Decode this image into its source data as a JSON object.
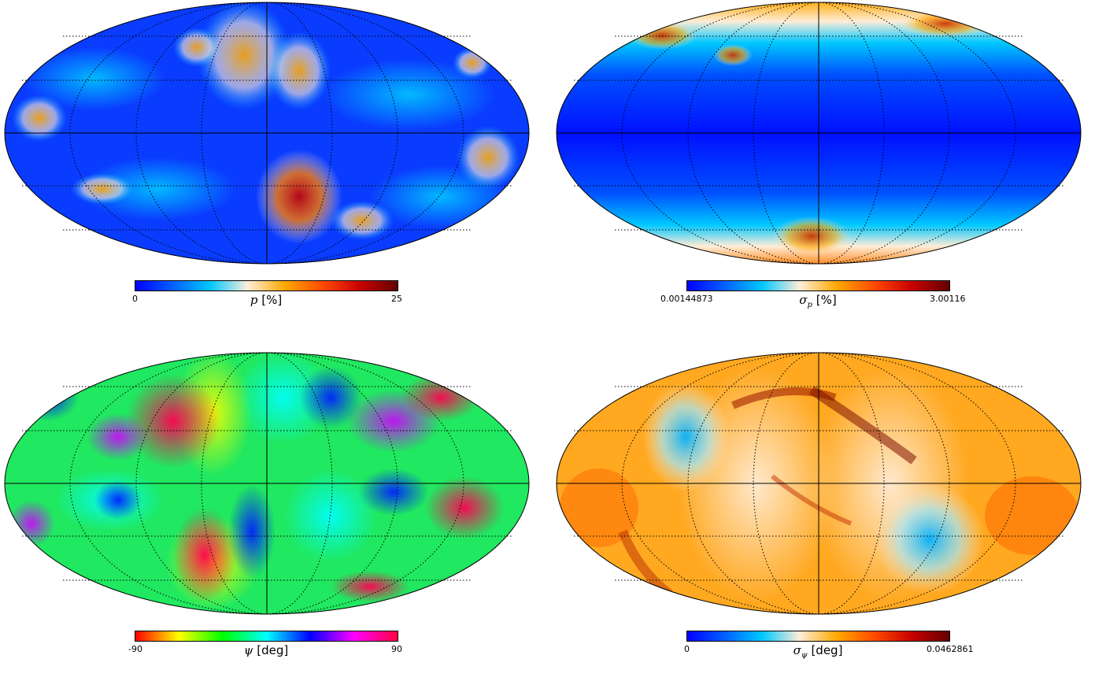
{
  "panels": [
    {
      "id": "p",
      "symbol": "p",
      "subscript": "",
      "unit": "[%]",
      "min_label": "0",
      "max_label": "25",
      "colormap": "planck",
      "colormap_stops": [
        "#0000ff",
        "#0060ff",
        "#00c8ff",
        "#ffedd8",
        "#ffa800",
        "#ff4a00",
        "#c80000",
        "#640000"
      ]
    },
    {
      "id": "sigma_p",
      "symbol": "σ",
      "subscript": "p",
      "unit": "[%]",
      "min_label": "0.00144873",
      "max_label": "3.00116",
      "colormap": "planck",
      "colormap_stops": [
        "#0000ff",
        "#0060ff",
        "#00c8ff",
        "#ffedd8",
        "#ffa800",
        "#ff4a00",
        "#c80000",
        "#640000"
      ]
    },
    {
      "id": "psi",
      "symbol": "ψ",
      "subscript": "",
      "unit": "[deg]",
      "min_label": "-90",
      "max_label": "90",
      "colormap": "hsv",
      "colormap_stops": [
        "#ff0000",
        "#ffff00",
        "#00ff00",
        "#00ffff",
        "#0000ff",
        "#ff00ff",
        "#ff0040"
      ]
    },
    {
      "id": "sigma_psi",
      "symbol": "σ",
      "subscript": "ψ",
      "unit": "[deg]",
      "min_label": "0",
      "max_label": "0.0462861",
      "colormap": "planck",
      "colormap_stops": [
        "#0000ff",
        "#0060ff",
        "#00c8ff",
        "#ffedd8",
        "#ffa800",
        "#ff4a00",
        "#c80000",
        "#640000"
      ]
    }
  ],
  "colors": {
    "graticule": "#000000",
    "outline": "#000000"
  }
}
